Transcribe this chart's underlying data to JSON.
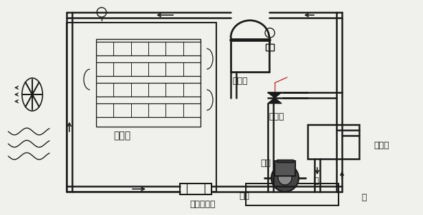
{
  "bg_color": "#f0f0ec",
  "line_color": "#1a1a1a",
  "labels": {
    "condenser": "冷凝器",
    "compressor": "压缩机",
    "expansion_valve": "膨胀阀",
    "evaporator": "蒸发器",
    "dry_filter": "干燥过滤器",
    "water_pump": "水泵",
    "water_tank": "水箱",
    "inlet": "进",
    "outlet": "出"
  },
  "figsize": [
    6.16,
    3.14
  ],
  "dpi": 100
}
